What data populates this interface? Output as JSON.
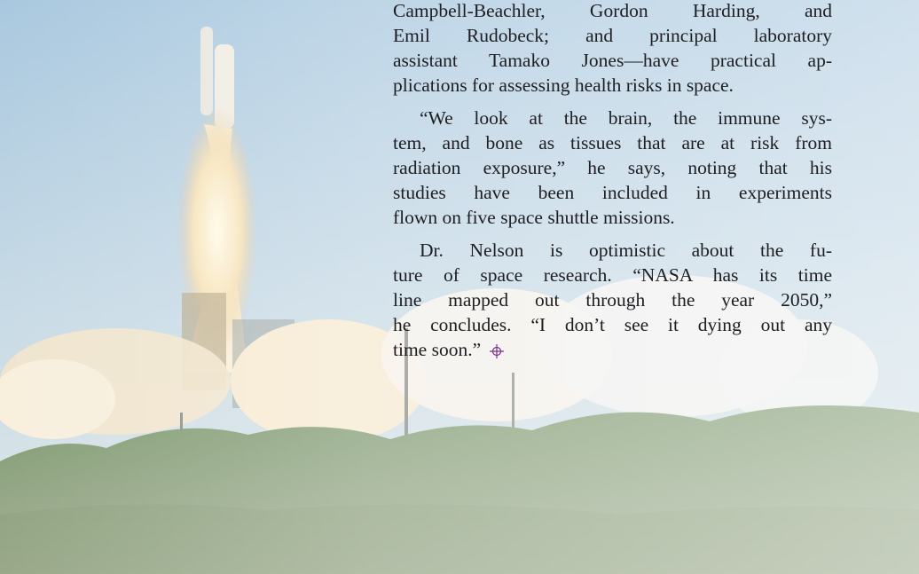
{
  "article": {
    "paragraphs": [
      {
        "lines": [
          "Campbell-Beachler, Gordon Harding, and",
          "Emil Rudobeck; and principal laboratory",
          "assistant Tamako Jones—have practical ap-",
          "plications for assessing health risks in space."
        ]
      },
      {
        "lines": [
          "“We look at the brain, the immune sys-",
          "tem, and bone as tissues that are at risk from",
          "radiation exposure,” he says, noting that his",
          "studies have been included in experiments",
          "flown on five space shuttle missions."
        ]
      },
      {
        "lines": [
          "Dr. Nelson is optimistic about the fu-",
          "ture of space research. “NASA has its time",
          "line mapped out through the year 2050,”",
          "he concludes. “I don’t see it dying out any",
          "time soon.”"
        ]
      }
    ]
  }
}
